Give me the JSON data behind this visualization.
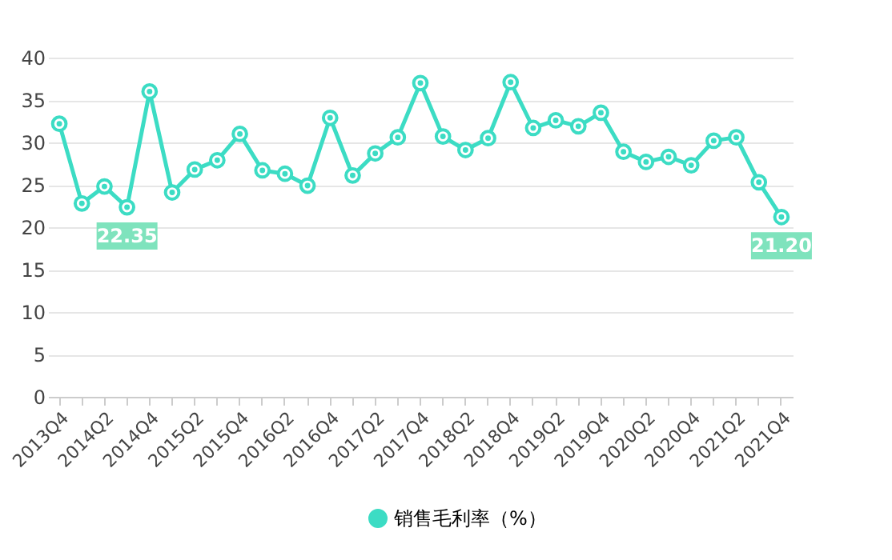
{
  "chart_data": {
    "type": "line",
    "categories": [
      "2013Q4",
      null,
      "2014Q2",
      null,
      "2014Q4",
      null,
      "2015Q2",
      null,
      "2015Q4",
      null,
      "2016Q2",
      null,
      "2016Q4",
      null,
      "2017Q2",
      null,
      "2017Q4",
      null,
      "2018Q2",
      null,
      "2018Q4",
      null,
      "2019Q2",
      null,
      "2019Q4",
      null,
      "2020Q2",
      null,
      "2020Q4",
      null,
      "2021Q2",
      null,
      "2021Q4"
    ],
    "series": [
      {
        "name": "销售毛利率（%）",
        "color": "#3cdcc4",
        "values": [
          32.2,
          22.8,
          24.8,
          22.35,
          36.0,
          24.1,
          26.8,
          27.9,
          31.0,
          26.7,
          26.3,
          24.9,
          32.9,
          26.1,
          28.7,
          30.6,
          37.0,
          30.7,
          29.1,
          30.5,
          37.1,
          31.7,
          32.6,
          31.9,
          33.5,
          28.9,
          27.7,
          28.3,
          27.3,
          30.2,
          30.6,
          25.3,
          21.2
        ],
        "value_labels": [
          null,
          null,
          null,
          "22.35",
          null,
          null,
          null,
          null,
          null,
          null,
          null,
          null,
          null,
          null,
          null,
          null,
          null,
          null,
          null,
          null,
          null,
          null,
          null,
          null,
          null,
          null,
          null,
          null,
          null,
          null,
          null,
          null,
          "21.20"
        ]
      }
    ],
    "ylim": [
      0,
      40
    ],
    "yticks": [
      0,
      5,
      10,
      15,
      20,
      25,
      30,
      35,
      40
    ],
    "grid": "y",
    "legend": "bottom",
    "marker": "circle",
    "line_style": "solid"
  }
}
